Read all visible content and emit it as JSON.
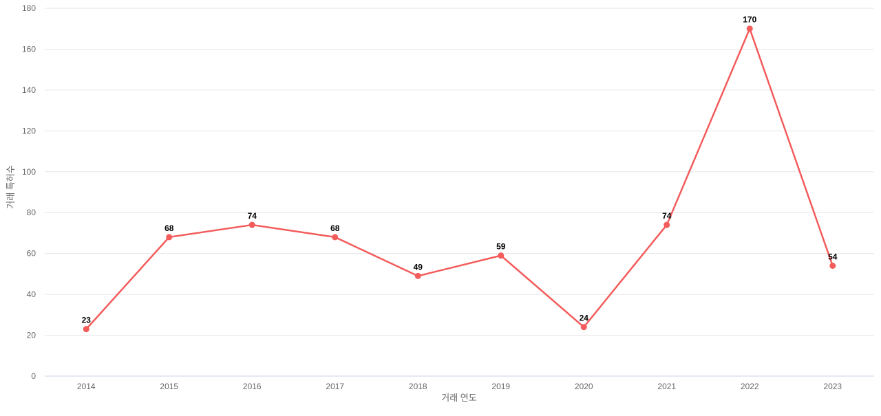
{
  "chart_data": {
    "type": "line",
    "title": "",
    "categories": [
      "2014",
      "2015",
      "2016",
      "2017",
      "2018",
      "2019",
      "2020",
      "2021",
      "2022",
      "2023"
    ],
    "series": [
      {
        "name": "거래 특허수",
        "values": [
          23,
          68,
          74,
          68,
          49,
          59,
          24,
          74,
          170,
          54
        ]
      }
    ],
    "data_labels": [
      "23",
      "68",
      "74",
      "68",
      "49",
      "59",
      "24",
      "74",
      "170",
      "54"
    ],
    "xlabel": "거래 연도",
    "ylabel": "거래 특허수",
    "ylim": [
      0,
      180
    ],
    "yticks": [
      0,
      20,
      40,
      60,
      80,
      100,
      120,
      140,
      160,
      180
    ],
    "grid": true,
    "legend": "none",
    "colors": {
      "line": "#f45b5b",
      "marker": "#f45b5b",
      "gridline": "#e6e6e6",
      "axis_line": "#ccd6eb",
      "tick_label": "#666666",
      "axis_title": "#666666",
      "data_label": "#000000",
      "background": "#ffffff"
    }
  }
}
